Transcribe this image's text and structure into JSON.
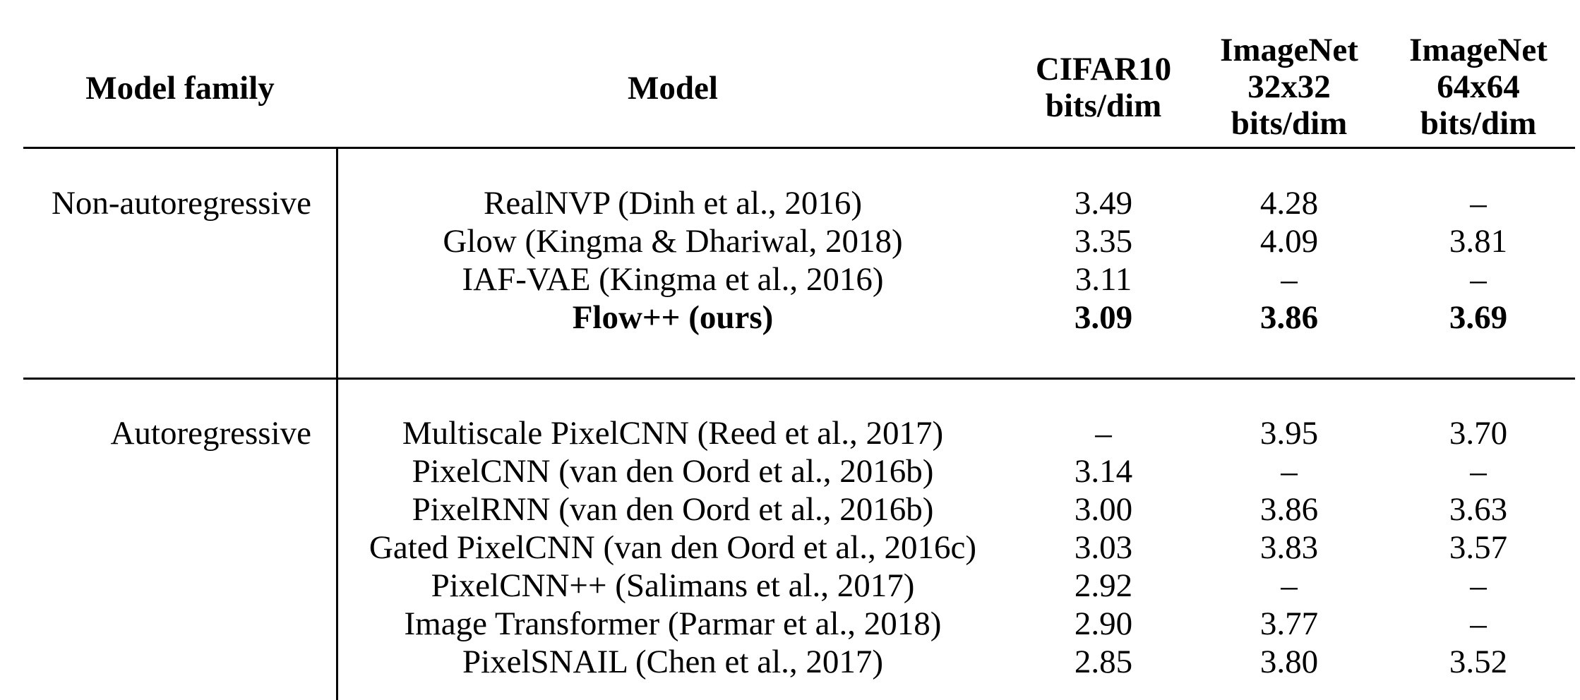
{
  "headers": {
    "family": [
      "Model family"
    ],
    "model": [
      "Model"
    ],
    "col1": [
      "CIFAR10",
      "bits/dim"
    ],
    "col2": [
      "ImageNet",
      "32x32",
      "bits/dim"
    ],
    "col3": [
      "ImageNet",
      "64x64",
      "bits/dim"
    ]
  },
  "groups": [
    {
      "family": "Non-autoregressive",
      "rows": [
        {
          "model": "RealNVP (Dinh et al., 2016)",
          "c1": "3.49",
          "c2": "4.28",
          "c3": "–",
          "bold": false
        },
        {
          "model": "Glow (Kingma & Dhariwal, 2018)",
          "c1": "3.35",
          "c2": "4.09",
          "c3": "3.81",
          "bold": false
        },
        {
          "model": "IAF-VAE (Kingma et al., 2016)",
          "c1": "3.11",
          "c2": "–",
          "c3": "–",
          "bold": false
        },
        {
          "model": "Flow++ (ours)",
          "c1": "3.09",
          "c2": "3.86",
          "c3": "3.69",
          "bold": true
        }
      ]
    },
    {
      "family": "Autoregressive",
      "rows": [
        {
          "model": "Multiscale PixelCNN (Reed et al., 2017)",
          "c1": "–",
          "c2": "3.95",
          "c3": "3.70",
          "bold": false
        },
        {
          "model": "PixelCNN (van den Oord et al., 2016b)",
          "c1": "3.14",
          "c2": "–",
          "c3": "–",
          "bold": false
        },
        {
          "model": "PixelRNN (van den Oord et al., 2016b)",
          "c1": "3.00",
          "c2": "3.86",
          "c3": "3.63",
          "bold": false
        },
        {
          "model": "Gated PixelCNN (van den Oord et al., 2016c)",
          "c1": "3.03",
          "c2": "3.83",
          "c3": "3.57",
          "bold": false
        },
        {
          "model": "PixelCNN++ (Salimans et al., 2017)",
          "c1": "2.92",
          "c2": "–",
          "c3": "–",
          "bold": false
        },
        {
          "model": "Image Transformer (Parmar et al., 2018)",
          "c1": "2.90",
          "c2": "3.77",
          "c3": "–",
          "bold": false
        },
        {
          "model": "PixelSNAIL (Chen et al., 2017)",
          "c1": "2.85",
          "c2": "3.80",
          "c3": "3.52",
          "bold": false
        }
      ]
    }
  ]
}
